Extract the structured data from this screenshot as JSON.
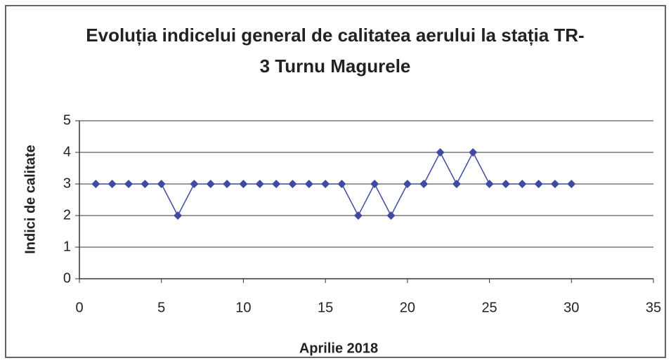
{
  "chart_data": {
    "type": "line",
    "title": "Evoluția indicelui general de calitatea aerului la stația TR-3 Turnu Magurele",
    "x_label": "Aprilie 2018",
    "y_label": "Indici de calitate",
    "x": [
      1,
      2,
      3,
      4,
      5,
      6,
      7,
      8,
      9,
      10,
      11,
      12,
      13,
      14,
      15,
      16,
      17,
      18,
      19,
      20,
      21,
      22,
      23,
      24,
      25,
      26,
      27,
      28,
      29,
      30
    ],
    "series": [
      {
        "name": "Indici de calitate",
        "color": "#3f4ba0",
        "values": [
          3,
          3,
          3,
          3,
          3,
          2,
          3,
          3,
          3,
          3,
          3,
          3,
          3,
          3,
          3,
          3,
          2,
          3,
          2,
          3,
          3,
          4,
          3,
          4,
          3,
          3,
          3,
          3,
          3,
          3
        ]
      }
    ],
    "xlim": [
      0,
      35
    ],
    "xticks": [
      0,
      5,
      10,
      15,
      20,
      25,
      30,
      35
    ],
    "ylim": [
      0,
      5
    ],
    "yticks": [
      0,
      1,
      2,
      3,
      4,
      5
    ],
    "grid": true
  }
}
